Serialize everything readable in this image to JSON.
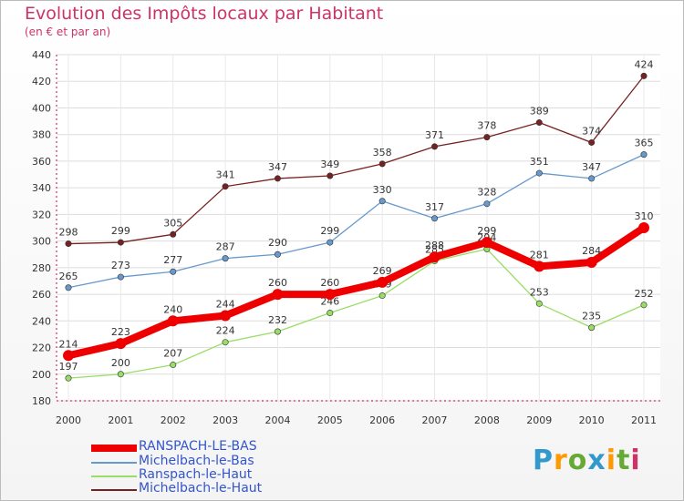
{
  "title": "Evolution des Impôts locaux par Habitant",
  "subtitle": "(en € et par an)",
  "logo": "Proxiti",
  "chart_data": {
    "type": "line",
    "title": "Evolution des Impôts locaux par Habitant",
    "ylabel": "(en € et par an)",
    "xlabel": "",
    "ylim": [
      180,
      440
    ],
    "yticks": [
      180,
      200,
      220,
      240,
      260,
      280,
      300,
      320,
      340,
      360,
      380,
      400,
      420,
      440
    ],
    "x": [
      "2000",
      "2001",
      "2002",
      "2003",
      "2004",
      "2005",
      "2006",
      "2007",
      "2008",
      "2009",
      "2010",
      "2011"
    ],
    "series": [
      {
        "name": "RANSPACH-LE-BAS",
        "color": "#ee0000",
        "values": [
          214,
          223,
          240,
          244,
          260,
          260,
          269,
          288,
          299,
          281,
          284,
          310
        ]
      },
      {
        "name": "Michelbach-le-Bas",
        "color": "#6699cc",
        "values": [
          265,
          273,
          277,
          287,
          290,
          299,
          330,
          317,
          328,
          351,
          347,
          365
        ]
      },
      {
        "name": "Ranspach-le-Haut",
        "color": "#99dd66",
        "values": [
          197,
          200,
          207,
          224,
          232,
          246,
          259,
          285,
          294,
          253,
          235,
          252
        ]
      },
      {
        "name": "Michelbach-le-Haut",
        "color": "#772222",
        "values": [
          298,
          299,
          305,
          341,
          347,
          349,
          358,
          371,
          378,
          389,
          374,
          424
        ]
      }
    ]
  }
}
